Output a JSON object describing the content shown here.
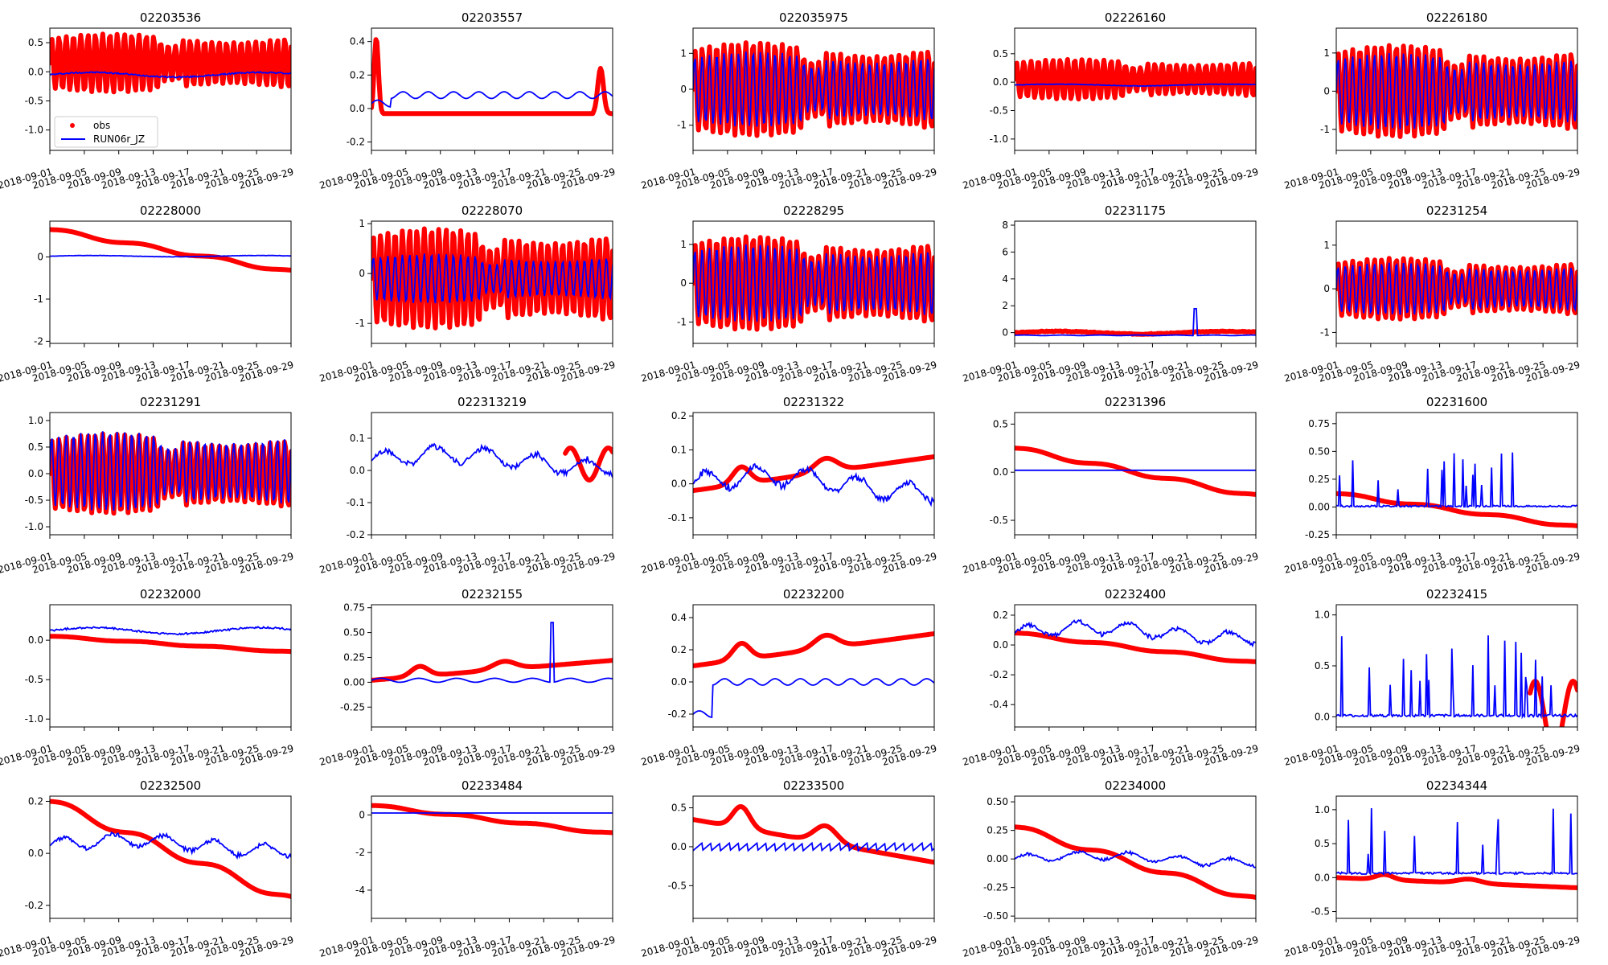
{
  "figure": {
    "legend_labels": {
      "obs": "obs",
      "model": "RUN06r_JZ"
    },
    "colors": {
      "obs": "#ff0000",
      "model": "#0000ff"
    },
    "x_ticks": [
      "2018-09-01",
      "2018-09-05",
      "2018-09-09",
      "2018-09-13",
      "2018-09-17",
      "2018-09-21",
      "2018-09-25",
      "2018-09-29"
    ]
  },
  "chart_data": [
    {
      "type": "line",
      "title": "02203536",
      "obs_shape": "tide",
      "model_shape": "flat",
      "obs_level": 0.15,
      "obs_amp": 0.5,
      "model_level": -0.05,
      "model_amp": 0.08,
      "ylim": [
        -1.35,
        0.75
      ],
      "yticks": [
        -1.0,
        -0.5,
        0.0,
        0.5
      ],
      "show_legend": true,
      "series": [
        {
          "name": "obs",
          "values": []
        },
        {
          "name": "RUN06r_JZ",
          "values": []
        }
      ]
    },
    {
      "type": "line",
      "title": "02203557",
      "obs_shape": "spikes",
      "model_shape": "step",
      "obs_level": -0.03,
      "obs_amp": 0.45,
      "model_level": 0.08,
      "model_amp": 0.05,
      "ylim": [
        -0.25,
        0.48
      ],
      "yticks": [
        -0.2,
        0.0,
        0.2,
        0.4
      ],
      "series": [
        {
          "name": "obs",
          "values": []
        },
        {
          "name": "RUN06r_JZ",
          "values": []
        }
      ]
    },
    {
      "type": "line",
      "title": "022035975",
      "obs_shape": "tide",
      "model_shape": "tide",
      "obs_level": 0.0,
      "obs_amp": 1.3,
      "model_level": 0.0,
      "model_amp": 1.05,
      "ylim": [
        -1.7,
        1.7
      ],
      "yticks": [
        -1,
        0,
        1
      ],
      "series": [
        {
          "name": "obs",
          "values": []
        },
        {
          "name": "RUN06r_JZ",
          "values": []
        }
      ]
    },
    {
      "type": "line",
      "title": "02226160",
      "obs_shape": "tide",
      "model_shape": "flat",
      "obs_level": 0.05,
      "obs_amp": 0.35,
      "model_level": -0.05,
      "model_amp": 0.03,
      "ylim": [
        -1.2,
        0.95
      ],
      "yticks": [
        -1.0,
        -0.5,
        0.0,
        0.5
      ],
      "series": [
        {
          "name": "obs",
          "values": []
        },
        {
          "name": "RUN06r_JZ",
          "values": []
        }
      ]
    },
    {
      "type": "line",
      "title": "02226180",
      "obs_shape": "tide",
      "model_shape": "tide",
      "obs_level": 0.0,
      "obs_amp": 1.2,
      "model_level": 0.0,
      "model_amp": 1.0,
      "ylim": [
        -1.55,
        1.65
      ],
      "yticks": [
        -1,
        0,
        1
      ],
      "series": [
        {
          "name": "obs",
          "values": []
        },
        {
          "name": "RUN06r_JZ",
          "values": []
        }
      ]
    },
    {
      "type": "line",
      "title": "02228000",
      "obs_shape": "decline",
      "model_shape": "flat",
      "obs_level": 0.65,
      "obs_amp": -1.0,
      "model_level": 0.02,
      "model_amp": 0.03,
      "ylim": [
        -2.05,
        0.85
      ],
      "yticks": [
        -2,
        -1,
        0
      ],
      "series": [
        {
          "name": "obs",
          "values": []
        },
        {
          "name": "RUN06r_JZ",
          "values": []
        }
      ]
    },
    {
      "type": "line",
      "title": "02228070",
      "obs_shape": "tide",
      "model_shape": "tide",
      "obs_level": -0.1,
      "obs_amp": 1.0,
      "model_level": -0.1,
      "model_amp": 0.5,
      "ylim": [
        -1.4,
        1.05
      ],
      "yticks": [
        -1,
        0,
        1
      ],
      "series": [
        {
          "name": "obs",
          "values": []
        },
        {
          "name": "RUN06r_JZ",
          "values": []
        }
      ]
    },
    {
      "type": "line",
      "title": "02228295",
      "obs_shape": "tide",
      "model_shape": "tide",
      "obs_level": 0.0,
      "obs_amp": 1.2,
      "model_level": 0.0,
      "model_amp": 1.0,
      "ylim": [
        -1.55,
        1.6
      ],
      "yticks": [
        -1,
        0,
        1
      ],
      "series": [
        {
          "name": "obs",
          "values": []
        },
        {
          "name": "RUN06r_JZ",
          "values": []
        }
      ]
    },
    {
      "type": "line",
      "title": "02231175",
      "obs_shape": "flat",
      "model_shape": "spike",
      "obs_level": 0.0,
      "obs_amp": 0.2,
      "model_level": -0.2,
      "model_amp": 2.0,
      "ylim": [
        -0.8,
        8.3
      ],
      "yticks": [
        0,
        2,
        4,
        6,
        8
      ],
      "series": [
        {
          "name": "obs",
          "values": []
        },
        {
          "name": "RUN06r_JZ",
          "values": []
        }
      ]
    },
    {
      "type": "line",
      "title": "02231254",
      "obs_shape": "tide",
      "model_shape": "tide",
      "obs_level": 0.0,
      "obs_amp": 0.7,
      "model_level": 0.0,
      "model_amp": 0.6,
      "ylim": [
        -1.25,
        1.55
      ],
      "yticks": [
        -1,
        0,
        1
      ],
      "series": [
        {
          "name": "obs",
          "values": []
        },
        {
          "name": "RUN06r_JZ",
          "values": []
        }
      ]
    },
    {
      "type": "line",
      "title": "02231291",
      "obs_shape": "tide",
      "model_shape": "tide",
      "obs_level": 0.0,
      "obs_amp": 0.75,
      "model_level": 0.05,
      "model_amp": 0.75,
      "ylim": [
        -1.15,
        1.15
      ],
      "yticks": [
        -1.0,
        -0.5,
        0.0,
        0.5,
        1.0
      ],
      "series": [
        {
          "name": "obs",
          "values": []
        },
        {
          "name": "RUN06r_JZ",
          "values": []
        }
      ]
    },
    {
      "type": "line",
      "title": "022313219",
      "obs_shape": "end",
      "model_shape": "wavy",
      "obs_level": 0.02,
      "obs_amp": 0.05,
      "model_level": 0.03,
      "model_amp": 0.07,
      "ylim": [
        -0.2,
        0.18
      ],
      "yticks": [
        -0.2,
        -0.1,
        0.0,
        0.1
      ],
      "series": [
        {
          "name": "obs",
          "values": []
        },
        {
          "name": "RUN06r_JZ",
          "values": []
        }
      ]
    },
    {
      "type": "line",
      "title": "02231322",
      "obs_shape": "peaks",
      "model_shape": "wavy",
      "obs_level": -0.02,
      "obs_amp": 0.2,
      "model_level": 0.0,
      "model_amp": 0.08,
      "ylim": [
        -0.15,
        0.21
      ],
      "yticks": [
        -0.1,
        0.0,
        0.1,
        0.2
      ],
      "series": [
        {
          "name": "obs",
          "values": []
        },
        {
          "name": "RUN06r_JZ",
          "values": []
        }
      ]
    },
    {
      "type": "line",
      "title": "02231396",
      "obs_shape": "decline",
      "model_shape": "flat",
      "obs_level": 0.25,
      "obs_amp": -0.5,
      "model_level": 0.02,
      "model_amp": 0.0,
      "ylim": [
        -0.65,
        0.62
      ],
      "yticks": [
        -0.5,
        0.0,
        0.5
      ],
      "series": [
        {
          "name": "obs",
          "values": []
        },
        {
          "name": "RUN06r_JZ",
          "values": []
        }
      ]
    },
    {
      "type": "line",
      "title": "02231600",
      "obs_shape": "decline",
      "model_shape": "spiky",
      "obs_level": 0.12,
      "obs_amp": -0.3,
      "model_level": 0.0,
      "model_amp": 0.5,
      "ylim": [
        -0.25,
        0.85
      ],
      "yticks": [
        -0.25,
        0.0,
        0.25,
        0.5,
        0.75
      ],
      "series": [
        {
          "name": "obs",
          "values": []
        },
        {
          "name": "RUN06r_JZ",
          "values": []
        }
      ]
    },
    {
      "type": "line",
      "title": "02232000",
      "obs_shape": "decline",
      "model_shape": "flat",
      "obs_level": 0.05,
      "obs_amp": -0.2,
      "model_level": 0.12,
      "model_amp": 0.08,
      "ylim": [
        -1.1,
        0.45
      ],
      "yticks": [
        -1.0,
        -0.5,
        0.0
      ],
      "series": [
        {
          "name": "obs",
          "values": []
        },
        {
          "name": "RUN06r_JZ",
          "values": []
        }
      ]
    },
    {
      "type": "line",
      "title": "02232155",
      "obs_shape": "peaks",
      "model_shape": "spike",
      "obs_level": 0.02,
      "obs_amp": 0.4,
      "model_level": 0.02,
      "model_amp": 0.6,
      "ylim": [
        -0.45,
        0.78
      ],
      "yticks": [
        -0.25,
        0.0,
        0.25,
        0.5,
        0.75
      ],
      "series": [
        {
          "name": "obs",
          "values": []
        },
        {
          "name": "RUN06r_JZ",
          "values": []
        }
      ]
    },
    {
      "type": "line",
      "title": "02232200",
      "obs_shape": "peaks",
      "model_shape": "step",
      "obs_level": 0.1,
      "obs_amp": 0.4,
      "model_level": 0.0,
      "model_amp": 0.2,
      "ylim": [
        -0.28,
        0.48
      ],
      "yticks": [
        -0.2,
        0.0,
        0.2,
        0.4
      ],
      "series": [
        {
          "name": "obs",
          "values": []
        },
        {
          "name": "RUN06r_JZ",
          "values": []
        }
      ]
    },
    {
      "type": "line",
      "title": "02232400",
      "obs_shape": "decline",
      "model_shape": "wavy",
      "obs_level": 0.08,
      "obs_amp": -0.2,
      "model_level": 0.08,
      "model_amp": 0.12,
      "ylim": [
        -0.55,
        0.27
      ],
      "yticks": [
        -0.4,
        -0.2,
        0.0,
        0.2
      ],
      "series": [
        {
          "name": "obs",
          "values": []
        },
        {
          "name": "RUN06r_JZ",
          "values": []
        }
      ]
    },
    {
      "type": "line",
      "title": "02232415",
      "obs_shape": "end",
      "model_shape": "spiky",
      "obs_level": 0.0,
      "obs_amp": 0.35,
      "model_level": 0.0,
      "model_amp": 0.8,
      "ylim": [
        -0.1,
        1.1
      ],
      "yticks": [
        0.0,
        0.5,
        1.0
      ],
      "series": [
        {
          "name": "obs",
          "values": []
        },
        {
          "name": "RUN06r_JZ",
          "values": []
        }
      ]
    },
    {
      "type": "line",
      "title": "02232500",
      "obs_shape": "decline",
      "model_shape": "wavy",
      "obs_level": 0.2,
      "obs_amp": -0.38,
      "model_level": 0.03,
      "model_amp": 0.07,
      "ylim": [
        -0.25,
        0.22
      ],
      "yticks": [
        -0.2,
        0.0,
        0.2
      ],
      "series": [
        {
          "name": "obs",
          "values": []
        },
        {
          "name": "RUN06r_JZ",
          "values": []
        }
      ]
    },
    {
      "type": "line",
      "title": "02233484",
      "obs_shape": "decline",
      "model_shape": "flat",
      "obs_level": 0.5,
      "obs_amp": -1.5,
      "model_level": 0.1,
      "model_amp": 0.0,
      "ylim": [
        -5.5,
        1.0
      ],
      "yticks": [
        -4,
        -2,
        0
      ],
      "series": [
        {
          "name": "obs",
          "values": []
        },
        {
          "name": "RUN06r_JZ",
          "values": []
        }
      ]
    },
    {
      "type": "line",
      "title": "02233500",
      "obs_shape": "peaks",
      "model_shape": "sawtooth",
      "obs_level": 0.35,
      "obs_amp": -1.1,
      "model_level": 0.0,
      "model_amp": 0.1,
      "ylim": [
        -0.92,
        0.65
      ],
      "yticks": [
        -0.5,
        0.0,
        0.5
      ],
      "series": [
        {
          "name": "obs",
          "values": []
        },
        {
          "name": "RUN06r_JZ",
          "values": []
        }
      ]
    },
    {
      "type": "line",
      "title": "02234000",
      "obs_shape": "decline",
      "model_shape": "wavy",
      "obs_level": 0.28,
      "obs_amp": -0.64,
      "model_level": 0.0,
      "model_amp": 0.1,
      "ylim": [
        -0.52,
        0.55
      ],
      "yticks": [
        -0.5,
        -0.25,
        0.0,
        0.25,
        0.5
      ],
      "series": [
        {
          "name": "obs",
          "values": []
        },
        {
          "name": "RUN06r_JZ",
          "values": []
        }
      ]
    },
    {
      "type": "line",
      "title": "02234344",
      "obs_shape": "peaks",
      "model_shape": "spiky",
      "obs_level": 0.0,
      "obs_amp": -0.3,
      "model_level": 0.05,
      "model_amp": 1.0,
      "ylim": [
        -0.6,
        1.2
      ],
      "yticks": [
        -0.5,
        0.0,
        0.5,
        1.0
      ],
      "series": [
        {
          "name": "obs",
          "values": []
        },
        {
          "name": "RUN06r_JZ",
          "values": []
        }
      ]
    }
  ]
}
